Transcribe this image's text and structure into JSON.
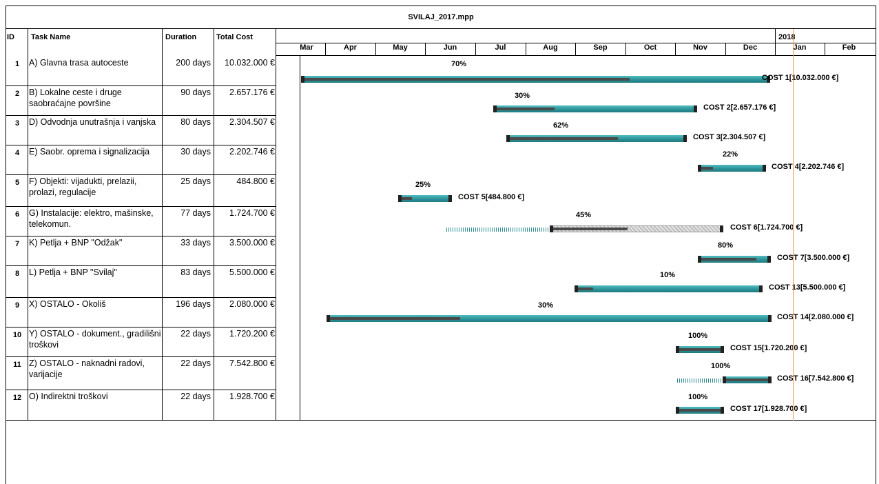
{
  "document": {
    "title": "SVILAJ_2017.mpp"
  },
  "columns": {
    "id": "ID",
    "task_name": "Task Name",
    "duration": "Duration",
    "total_cost": "Total Cost"
  },
  "timescale": {
    "year_label": "2018",
    "months": [
      "Mar",
      "Apr",
      "May",
      "Jun",
      "Jul",
      "Aug",
      "Sep",
      "Oct",
      "Nov",
      "Dec",
      "Jan",
      "Feb"
    ]
  },
  "tasks": [
    {
      "id": "1",
      "name": "A) Glavna trasa autoceste",
      "duration": "200 days",
      "cost": "10.032.000 €",
      "percent": "70%",
      "bar_label": "COST 1[10.032.000 €]",
      "progress": 0.7
    },
    {
      "id": "2",
      "name": "B)  Lokalne ceste i druge saobraćajne površine",
      "duration": "90 days",
      "cost": "2.657.176 €",
      "percent": "30%",
      "bar_label": "COST 2[2.657.176 €]",
      "progress": 0.3
    },
    {
      "id": "3",
      "name": "D) Odvodnja unutrašnja i vanjska",
      "duration": "80 days",
      "cost": "2.304.507 €",
      "percent": "62%",
      "bar_label": "COST 3[2.304.507 €]",
      "progress": 0.62
    },
    {
      "id": "4",
      "name": "E) Saobr. oprema i signalizacija",
      "duration": "30 days",
      "cost": "2.202.746 €",
      "percent": "22%",
      "bar_label": "COST 4[2.202.746 €]",
      "progress": 0.22
    },
    {
      "id": "5",
      "name": "F) Objekti: vijadukti, prelazii, prolazi, regulacije",
      "duration": "25 days",
      "cost": "484.800 €",
      "percent": "25%",
      "bar_label": "COST 5[484.800 €]",
      "progress": 0.25
    },
    {
      "id": "6",
      "name": "G) Instalacije: elektro, mašinske, telekomun.",
      "duration": "77 days",
      "cost": "1.724.700 €",
      "percent": "45%",
      "bar_label": "COST 6[1.724.700 €]",
      "progress": 0.45
    },
    {
      "id": "7",
      "name": "K) Petlja + BNP \"Odžak\"",
      "duration": "33 days",
      "cost": "3.500.000 €",
      "percent": "80%",
      "bar_label": "COST 7[3.500.000 €]",
      "progress": 0.8
    },
    {
      "id": "8",
      "name": "L) Petlja + BNP \"Svilaj\"",
      "duration": "83 days",
      "cost": "5.500.000 €",
      "percent": "10%",
      "bar_label": "COST 13[5.500.000 €]",
      "progress": 0.1
    },
    {
      "id": "9",
      "name": "X) OSTALO - Okoliš",
      "duration": "196 days",
      "cost": "2.080.000 €",
      "percent": "30%",
      "bar_label": "COST 14[2.080.000 €]",
      "progress": 0.3
    },
    {
      "id": "10",
      "name": "Y) OSTALO - dokument., gradilišni troškovi",
      "duration": "22 days",
      "cost": "1.720.200 €",
      "percent": "100%",
      "bar_label": "COST 15[1.720.200 €]",
      "progress": 1.0
    },
    {
      "id": "11",
      "name": "Z) OSTALO - naknadni radovi, varijacije",
      "duration": "22 days",
      "cost": "7.542.800 €",
      "percent": "100%",
      "bar_label": "COST 16[7.542.800 €]",
      "progress": 1.0
    },
    {
      "id": "12",
      "name": "O) Indirektni troškovi",
      "duration": "22 days",
      "cost": "1.928.700 €",
      "percent": "100%",
      "bar_label": "COST 17[1.928.700 €]",
      "progress": 1.0
    }
  ]
}
